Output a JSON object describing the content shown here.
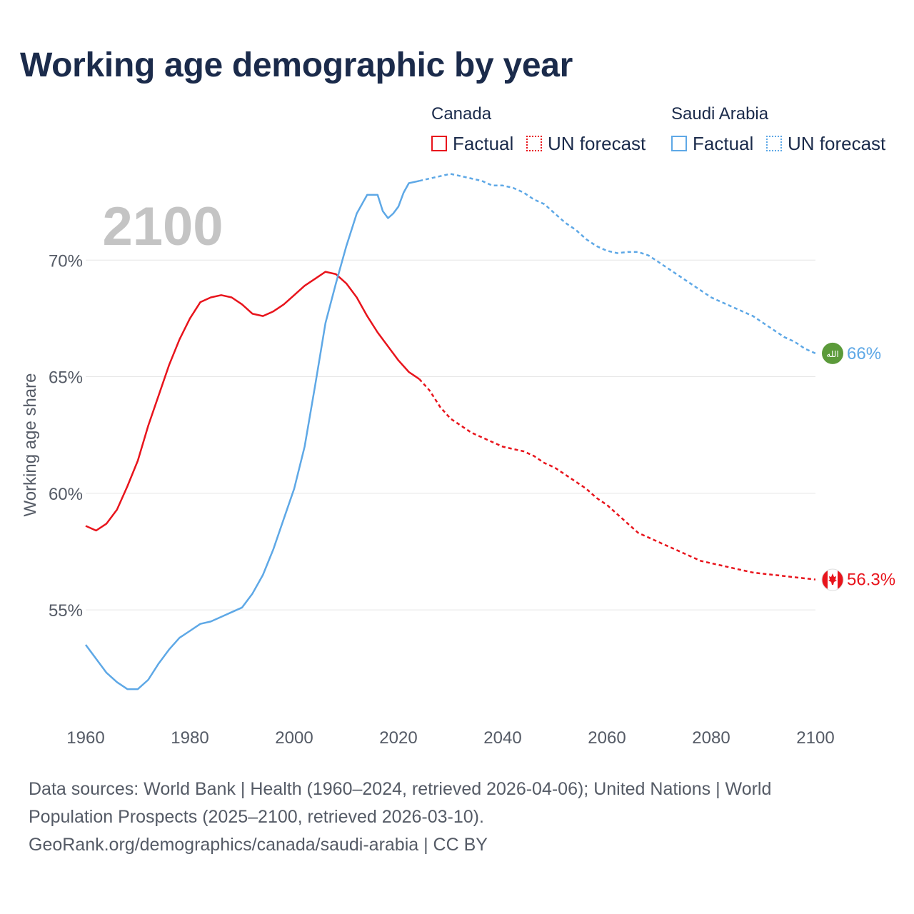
{
  "title": "Working age demographic by year",
  "year_watermark": "2100",
  "legend": {
    "groups": [
      {
        "country": "Canada",
        "color": "#e8141c",
        "factual_label": "Factual",
        "forecast_label": "UN forecast"
      },
      {
        "country": "Saudi Arabia",
        "color": "#5ea8e6",
        "factual_label": "Factual",
        "forecast_label": "UN forecast"
      }
    ]
  },
  "end_labels": {
    "canada": "56.3%",
    "saudi_arabia": "66%",
    "saudi_flag_text": "الله",
    "canada_flag_icon": "maple-leaf-icon"
  },
  "source": {
    "line1": "Data sources: World Bank | Health (1960–2024, retrieved 2026-04-06); United Nations | World",
    "line2": "Population Prospects (2025–2100, retrieved 2026-03-10).",
    "line3": "GeoRank.org/demographics/canada/saudi-arabia | CC BY"
  },
  "chart_data": {
    "type": "line",
    "title": "Working age demographic by year",
    "xlabel": "",
    "ylabel": "Working age share",
    "xlim": [
      1960,
      2100
    ],
    "ylim": [
      50.5,
      73.5
    ],
    "x_ticks": [
      1960,
      1980,
      2000,
      2020,
      2040,
      2060,
      2080,
      2100
    ],
    "x_tick_labels": [
      "1960",
      "1980",
      "2000",
      "2020",
      "2040",
      "2060",
      "2080",
      "2100"
    ],
    "y_ticks": [
      55,
      60,
      65,
      70
    ],
    "y_tick_labels": [
      "55%",
      "60%",
      "65%",
      "70%"
    ],
    "grid": true,
    "series": [
      {
        "name": "Canada",
        "color": "#e8141c",
        "factual": {
          "x": [
            1960,
            1962,
            1964,
            1966,
            1968,
            1970,
            1972,
            1974,
            1976,
            1978,
            1980,
            1982,
            1984,
            1986,
            1988,
            1990,
            1992,
            1994,
            1996,
            1998,
            2000,
            2002,
            2004,
            2006,
            2008,
            2010,
            2012,
            2014,
            2016,
            2018,
            2020,
            2022,
            2024
          ],
          "y": [
            58.6,
            58.4,
            58.7,
            59.3,
            60.3,
            61.4,
            62.9,
            64.2,
            65.5,
            66.6,
            67.5,
            68.2,
            68.4,
            68.5,
            68.4,
            68.1,
            67.7,
            67.6,
            67.8,
            68.1,
            68.5,
            68.9,
            69.2,
            69.5,
            69.4,
            69.0,
            68.4,
            67.6,
            66.9,
            66.3,
            65.7,
            65.2,
            64.9
          ]
        },
        "forecast": {
          "x": [
            2024,
            2026,
            2028,
            2030,
            2032,
            2034,
            2036,
            2038,
            2040,
            2042,
            2044,
            2046,
            2048,
            2050,
            2052,
            2054,
            2056,
            2058,
            2060,
            2062,
            2064,
            2066,
            2068,
            2070,
            2072,
            2074,
            2076,
            2078,
            2080,
            2082,
            2084,
            2086,
            2088,
            2090,
            2092,
            2094,
            2096,
            2098,
            2100
          ],
          "y": [
            64.9,
            64.4,
            63.7,
            63.2,
            62.9,
            62.6,
            62.4,
            62.2,
            62.0,
            61.9,
            61.8,
            61.6,
            61.3,
            61.1,
            60.8,
            60.5,
            60.2,
            59.8,
            59.5,
            59.1,
            58.7,
            58.3,
            58.1,
            57.9,
            57.7,
            57.5,
            57.3,
            57.1,
            57.0,
            56.9,
            56.8,
            56.7,
            56.6,
            56.55,
            56.5,
            56.45,
            56.4,
            56.35,
            56.3
          ]
        },
        "end_value": 56.3,
        "end_label": "56.3%"
      },
      {
        "name": "Saudi Arabia",
        "color": "#5ea8e6",
        "factual": {
          "x": [
            1960,
            1962,
            1964,
            1966,
            1968,
            1970,
            1972,
            1974,
            1976,
            1978,
            1980,
            1982,
            1984,
            1986,
            1988,
            1990,
            1992,
            1994,
            1996,
            1998,
            2000,
            2002,
            2004,
            2006,
            2008,
            2010,
            2012,
            2014,
            2016,
            2017,
            2018,
            2019,
            2020,
            2021,
            2022,
            2024
          ],
          "y": [
            53.5,
            52.9,
            52.3,
            51.9,
            51.6,
            51.6,
            52.0,
            52.7,
            53.3,
            53.8,
            54.1,
            54.4,
            54.5,
            54.7,
            54.9,
            55.1,
            55.7,
            56.5,
            57.6,
            58.9,
            60.2,
            62.0,
            64.6,
            67.3,
            69.0,
            70.6,
            72.0,
            72.8,
            72.8,
            72.1,
            71.8,
            72.0,
            72.3,
            72.9,
            73.3,
            73.4
          ]
        },
        "forecast": {
          "x": [
            2024,
            2026,
            2028,
            2030,
            2032,
            2034,
            2036,
            2038,
            2040,
            2042,
            2044,
            2046,
            2048,
            2050,
            2052,
            2054,
            2056,
            2058,
            2060,
            2062,
            2064,
            2066,
            2068,
            2070,
            2072,
            2074,
            2076,
            2078,
            2080,
            2082,
            2084,
            2086,
            2088,
            2090,
            2092,
            2094,
            2096,
            2098,
            2100
          ],
          "y": [
            73.4,
            73.5,
            73.6,
            73.7,
            73.6,
            73.5,
            73.4,
            73.2,
            73.2,
            73.1,
            72.9,
            72.6,
            72.4,
            72.0,
            71.6,
            71.3,
            70.9,
            70.6,
            70.4,
            70.3,
            70.35,
            70.35,
            70.2,
            69.9,
            69.6,
            69.3,
            69.0,
            68.7,
            68.4,
            68.2,
            68.0,
            67.8,
            67.6,
            67.3,
            67.0,
            66.7,
            66.5,
            66.2,
            66.0
          ]
        },
        "end_value": 66.0,
        "end_label": "66%"
      }
    ]
  }
}
